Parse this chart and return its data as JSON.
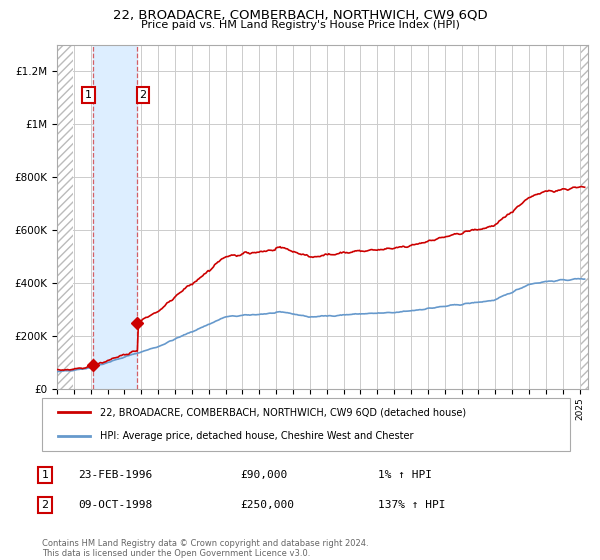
{
  "title": "22, BROADACRE, COMBERBACH, NORTHWICH, CW9 6QD",
  "subtitle": "Price paid vs. HM Land Registry's House Price Index (HPI)",
  "legend_label_red": "22, BROADACRE, COMBERBACH, NORTHWICH, CW9 6QD (detached house)",
  "legend_label_blue": "HPI: Average price, detached house, Cheshire West and Chester",
  "footnote": "Contains HM Land Registry data © Crown copyright and database right 2024.\nThis data is licensed under the Open Government Licence v3.0.",
  "transaction1_date": "23-FEB-1996",
  "transaction1_price": 90000,
  "transaction1_hpi": "1% ↑ HPI",
  "transaction1_x": 1996.14,
  "transaction2_date": "09-OCT-1998",
  "transaction2_price": 250000,
  "transaction2_hpi": "137% ↑ HPI",
  "transaction2_x": 1998.77,
  "red_color": "#cc0000",
  "blue_color": "#6699cc",
  "marker_color": "#cc0000",
  "sale_band_color": "#ddeeff",
  "vline_color": "#cc0000",
  "grid_color": "#cccccc",
  "hatch_color": "#bbbbbb",
  "ylim": [
    0,
    1300000
  ],
  "xlim": [
    1994.0,
    2025.5
  ],
  "hatch_left_end": 1994.92,
  "hatch_right_start": 2025.08
}
